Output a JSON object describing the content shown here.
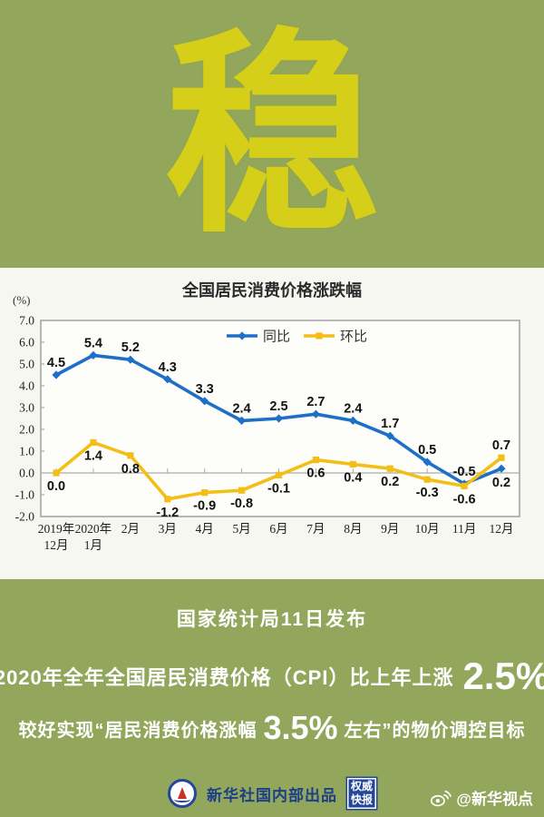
{
  "hero": {
    "character": "稳"
  },
  "colors": {
    "background_green": "#92a75c",
    "hero_yellow": "#d6cf1a",
    "panel_background": "#f6f7f0",
    "yoy_blue": "#1e6fc8",
    "mom_yellow": "#f3bf16",
    "footer_navy": "#1d3f88",
    "stamp_blue": "#24479a",
    "text_white": "#ffffff"
  },
  "chart_data": {
    "type": "line",
    "title": "全国居民消费价格涨跌幅",
    "unit_label": "(%)",
    "categories": [
      "2019年12月",
      "2020年1月",
      "2月",
      "3月",
      "4月",
      "5月",
      "6月",
      "7月",
      "8月",
      "9月",
      "10月",
      "11月",
      "12月"
    ],
    "x_tick_line1": [
      "2019年",
      "2020年",
      "2月",
      "3月",
      "4月",
      "5月",
      "6月",
      "7月",
      "8月",
      "9月",
      "10月",
      "11月",
      "12月"
    ],
    "x_tick_line2": [
      "12月",
      "1月",
      "",
      "",
      "",
      "",
      "",
      "",
      "",
      "",
      "",
      "",
      ""
    ],
    "series": [
      {
        "name": "同比",
        "color": "#1e6fc8",
        "marker": "diamond",
        "values": [
          4.5,
          5.4,
          5.2,
          4.3,
          3.3,
          2.4,
          2.5,
          2.7,
          2.4,
          1.7,
          0.5,
          -0.5,
          0.2
        ]
      },
      {
        "name": "环比",
        "color": "#f3bf16",
        "marker": "square",
        "values": [
          0.0,
          1.4,
          0.8,
          -1.2,
          -0.9,
          -0.8,
          -0.1,
          0.6,
          0.4,
          0.2,
          -0.3,
          -0.6,
          0.7
        ]
      }
    ],
    "ylim": [
      -2.0,
      7.0
    ],
    "y_ticks": [
      "7.0",
      "6.0",
      "5.0",
      "4.0",
      "3.0",
      "2.0",
      "1.0",
      "0.0",
      "-1.0",
      "-2.0"
    ],
    "grid": "zero-line-only",
    "legend_position": "top-center"
  },
  "announcement": {
    "source_line": "国家统计局11日发布",
    "line1_prefix": "2020年全年全国居民消费价格（CPI）比上年上涨",
    "line1_value": "2.5%",
    "line2_prefix": "较好实现“居民消费价格涨幅",
    "line2_value": "3.5%",
    "line2_suffix": "左右”的物价调控目标"
  },
  "footer": {
    "xinhua_logo_icon": "xinhua-logo",
    "producer": "新华社国内部出品",
    "stamp_line1": "权威",
    "stamp_line2": "快报",
    "weibo_icon": "weibo-icon",
    "weibo_handle": "@新华视点"
  }
}
